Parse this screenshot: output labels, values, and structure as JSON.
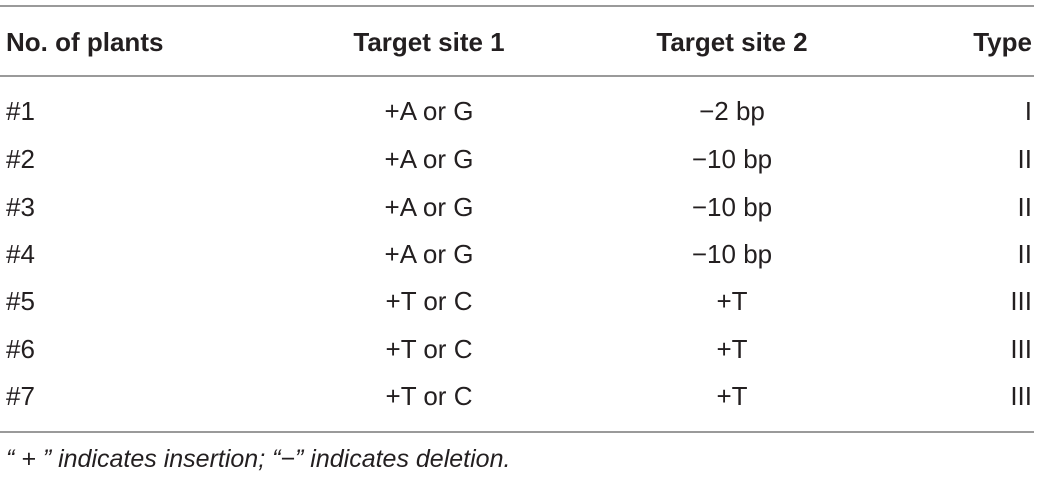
{
  "table": {
    "headers": [
      "No. of plants",
      "Target site 1",
      "Target site 2",
      "Type"
    ],
    "rows": [
      [
        "#1",
        "+A or G",
        "−2 bp",
        "I"
      ],
      [
        "#2",
        "+A or G",
        "−10 bp",
        "II"
      ],
      [
        "#3",
        "+A or G",
        "−10 bp",
        "II"
      ],
      [
        "#4",
        "+A or G",
        "−10 bp",
        "II"
      ],
      [
        "#5",
        "+T or C",
        "+T",
        "III"
      ],
      [
        "#6",
        "+T or C",
        "+T",
        "III"
      ],
      [
        "#7",
        "+T or C",
        "+T",
        "III"
      ]
    ]
  },
  "footnote": "“ + ” indicates insertion; “−” indicates deletion."
}
